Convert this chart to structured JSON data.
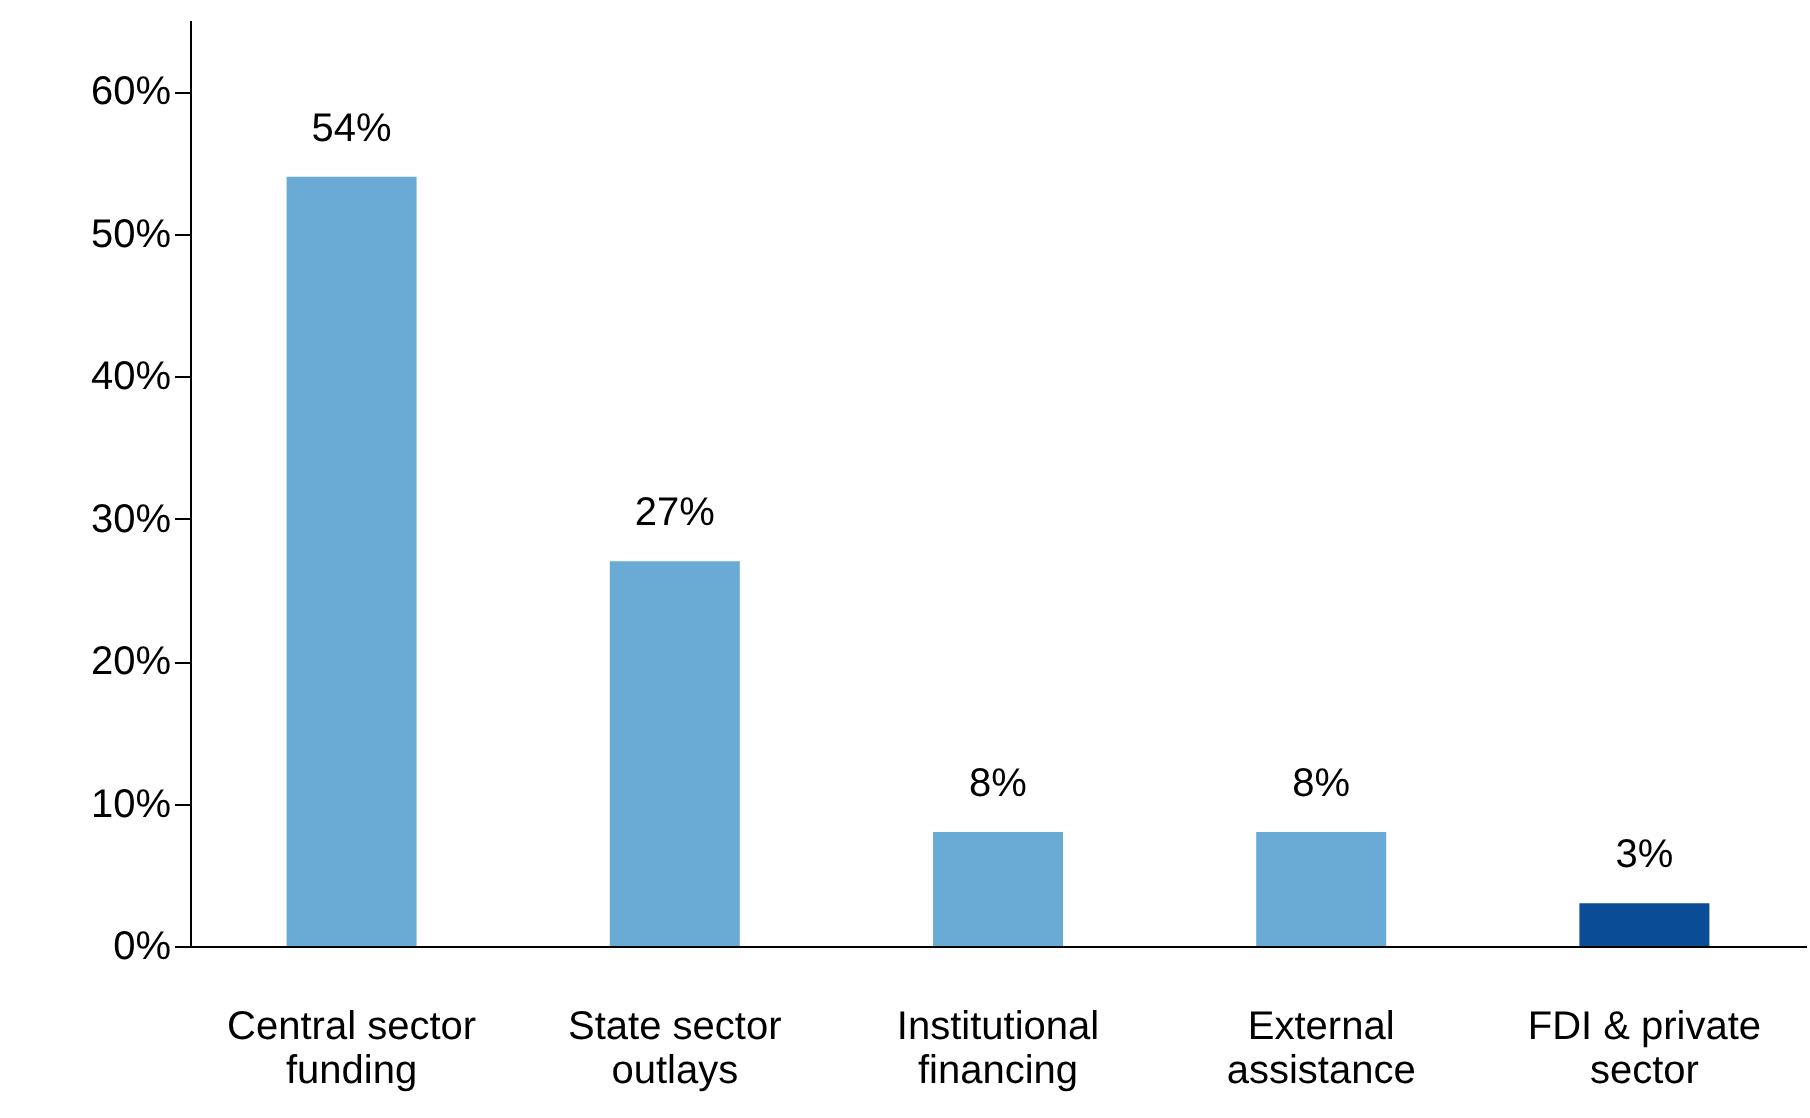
{
  "chart_data": {
    "type": "bar",
    "categories": [
      "Central sector\nfunding",
      "State sector\noutlays",
      "Institutional\nfinancing",
      "External\nassistance",
      "FDI & private\nsector"
    ],
    "values": [
      54,
      27,
      8,
      8,
      3
    ],
    "colors": [
      "#6aabd6",
      "#6aabd6",
      "#6aabd6",
      "#6aabd6",
      "#0b4c96"
    ],
    "value_labels": [
      "54%",
      "27%",
      "8%",
      "8%",
      "3%"
    ],
    "ylim": [
      0,
      65
    ],
    "yticks": [
      {
        "value": 0,
        "label": "0%"
      },
      {
        "value": 10,
        "label": "10%"
      },
      {
        "value": 20,
        "label": "20%"
      },
      {
        "value": 30,
        "label": "30%"
      },
      {
        "value": 40,
        "label": "40%"
      },
      {
        "value": 50,
        "label": "50%"
      },
      {
        "value": 60,
        "label": "60%"
      }
    ],
    "grid": false
  }
}
